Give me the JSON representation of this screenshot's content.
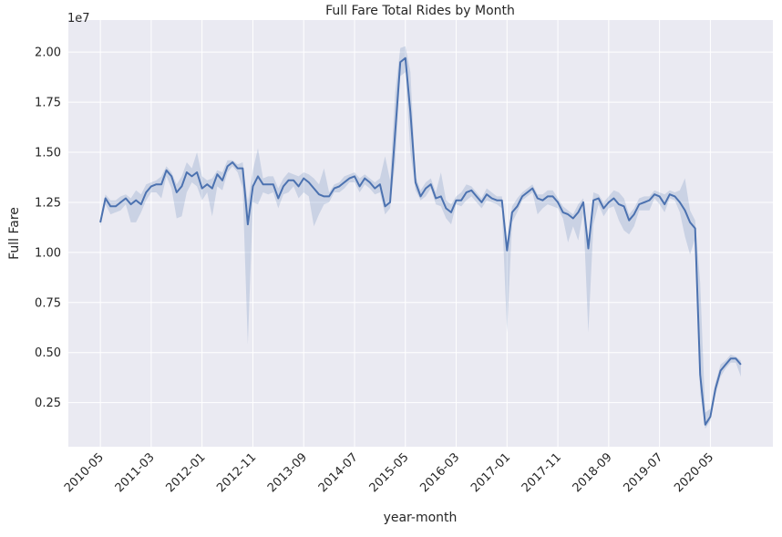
{
  "chart_data": {
    "type": "line",
    "title": "Full Fare Total Rides by Month",
    "xlabel": "year-month",
    "ylabel": "Full Fare",
    "y_offset_label": "1e7",
    "color": "#4c72b0",
    "background": "#eaeaf2",
    "grid": true,
    "categories": [
      "2010-05",
      null,
      null,
      null,
      null,
      null,
      null,
      null,
      null,
      null,
      "2011-03",
      null,
      null,
      null,
      null,
      null,
      null,
      null,
      null,
      null,
      "2012-01",
      null,
      null,
      null,
      null,
      null,
      null,
      null,
      null,
      null,
      "2012-11",
      null,
      null,
      null,
      null,
      null,
      null,
      null,
      null,
      null,
      "2013-09",
      null,
      null,
      null,
      null,
      null,
      null,
      null,
      null,
      null,
      "2014-07",
      null,
      null,
      null,
      null,
      null,
      null,
      null,
      null,
      null,
      "2015-05",
      null,
      null,
      null,
      null,
      null,
      null,
      null,
      null,
      null,
      "2016-03",
      null,
      null,
      null,
      null,
      null,
      null,
      null,
      null,
      null,
      "2017-01",
      null,
      null,
      null,
      null,
      null,
      null,
      null,
      null,
      null,
      "2017-11",
      null,
      null,
      null,
      null,
      null,
      null,
      null,
      null,
      null,
      "2018-09",
      null,
      null,
      null,
      null,
      null,
      null,
      null,
      null,
      null,
      "2019-07",
      null,
      null,
      null,
      null,
      null,
      null,
      null,
      null,
      null,
      "2020-05",
      null,
      null,
      null,
      null,
      null,
      null
    ],
    "values": [
      1.15,
      1.27,
      1.23,
      1.23,
      1.25,
      1.27,
      1.24,
      1.26,
      1.24,
      1.3,
      1.33,
      1.34,
      1.34,
      1.41,
      1.38,
      1.3,
      1.33,
      1.4,
      1.38,
      1.4,
      1.32,
      1.34,
      1.32,
      1.39,
      1.36,
      1.43,
      1.45,
      1.42,
      1.42,
      1.14,
      1.33,
      1.38,
      1.34,
      1.34,
      1.34,
      1.27,
      1.33,
      1.36,
      1.36,
      1.33,
      1.37,
      1.35,
      1.32,
      1.29,
      1.28,
      1.28,
      1.32,
      1.33,
      1.35,
      1.37,
      1.38,
      1.33,
      1.37,
      1.35,
      1.32,
      1.34,
      1.23,
      1.25,
      1.6,
      1.95,
      1.97,
      1.7,
      1.35,
      1.28,
      1.32,
      1.34,
      1.27,
      1.28,
      1.22,
      1.2,
      1.26,
      1.26,
      1.3,
      1.31,
      1.28,
      1.25,
      1.29,
      1.27,
      1.26,
      1.26,
      1.01,
      1.2,
      1.23,
      1.28,
      1.3,
      1.32,
      1.27,
      1.26,
      1.28,
      1.28,
      1.25,
      1.2,
      1.19,
      1.17,
      1.2,
      1.25,
      1.02,
      1.26,
      1.27,
      1.22,
      1.25,
      1.27,
      1.24,
      1.23,
      1.16,
      1.19,
      1.24,
      1.25,
      1.26,
      1.29,
      1.28,
      1.24,
      1.29,
      1.28,
      1.25,
      1.21,
      1.15,
      1.12,
      0.39,
      0.14,
      0.18,
      0.32,
      0.41,
      0.44,
      0.47,
      0.47,
      0.44
    ],
    "ci_lower": [
      1.13,
      1.24,
      1.19,
      1.2,
      1.21,
      1.24,
      1.15,
      1.15,
      1.2,
      1.26,
      1.3,
      1.3,
      1.27,
      1.38,
      1.32,
      1.17,
      1.18,
      1.3,
      1.35,
      1.33,
      1.26,
      1.3,
      1.18,
      1.33,
      1.31,
      1.4,
      1.43,
      1.4,
      1.32,
      0.54,
      1.25,
      1.24,
      1.3,
      1.29,
      1.3,
      1.22,
      1.29,
      1.3,
      1.33,
      1.27,
      1.3,
      1.28,
      1.13,
      1.19,
      1.24,
      1.25,
      1.3,
      1.3,
      1.32,
      1.35,
      1.35,
      1.3,
      1.34,
      1.32,
      1.29,
      1.3,
      1.19,
      1.22,
      1.45,
      1.88,
      1.9,
      1.5,
      1.31,
      1.26,
      1.28,
      1.32,
      1.24,
      1.23,
      1.17,
      1.14,
      1.24,
      1.23,
      1.26,
      1.28,
      1.25,
      1.22,
      1.26,
      1.25,
      1.24,
      1.22,
      0.6,
      1.15,
      1.2,
      1.26,
      1.28,
      1.3,
      1.19,
      1.22,
      1.24,
      1.23,
      1.22,
      1.17,
      1.05,
      1.13,
      1.06,
      1.2,
      0.6,
      1.14,
      1.24,
      1.18,
      1.22,
      1.23,
      1.16,
      1.11,
      1.09,
      1.13,
      1.21,
      1.21,
      1.21,
      1.27,
      1.24,
      1.2,
      1.27,
      1.26,
      1.2,
      1.08,
      0.99,
      1.07,
      0.3,
      0.12,
      0.16,
      0.29,
      0.38,
      0.42,
      0.45,
      0.45,
      0.38
    ],
    "ci_upper": [
      1.17,
      1.29,
      1.26,
      1.26,
      1.28,
      1.29,
      1.27,
      1.31,
      1.29,
      1.34,
      1.35,
      1.36,
      1.38,
      1.43,
      1.4,
      1.34,
      1.38,
      1.45,
      1.42,
      1.5,
      1.38,
      1.36,
      1.37,
      1.41,
      1.4,
      1.46,
      1.46,
      1.44,
      1.45,
      1.25,
      1.41,
      1.52,
      1.37,
      1.38,
      1.38,
      1.32,
      1.37,
      1.4,
      1.39,
      1.38,
      1.4,
      1.39,
      1.37,
      1.34,
      1.42,
      1.3,
      1.34,
      1.35,
      1.38,
      1.39,
      1.4,
      1.37,
      1.39,
      1.37,
      1.35,
      1.37,
      1.48,
      1.36,
      1.8,
      2.02,
      2.03,
      1.9,
      1.38,
      1.31,
      1.35,
      1.37,
      1.3,
      1.4,
      1.26,
      1.24,
      1.28,
      1.3,
      1.34,
      1.33,
      1.3,
      1.27,
      1.32,
      1.3,
      1.28,
      1.28,
      1.06,
      1.23,
      1.27,
      1.3,
      1.32,
      1.34,
      1.29,
      1.29,
      1.31,
      1.31,
      1.27,
      1.23,
      1.21,
      1.19,
      1.24,
      1.27,
      1.05,
      1.3,
      1.29,
      1.25,
      1.28,
      1.31,
      1.3,
      1.27,
      1.19,
      1.22,
      1.27,
      1.28,
      1.28,
      1.31,
      1.3,
      1.29,
      1.31,
      1.3,
      1.31,
      1.37,
      1.21,
      1.16,
      0.85,
      0.2,
      0.22,
      0.35,
      0.44,
      0.46,
      0.49,
      0.48,
      0.46
    ],
    "ylim": [
      0.03,
      2.16
    ],
    "yticks": [
      0.25,
      0.5,
      0.75,
      1.0,
      1.25,
      1.5,
      1.75,
      2.0
    ],
    "ytick_labels": [
      "0.25",
      "0.50",
      "0.75",
      "1.00",
      "1.25",
      "1.50",
      "1.75",
      "2.00"
    ]
  }
}
